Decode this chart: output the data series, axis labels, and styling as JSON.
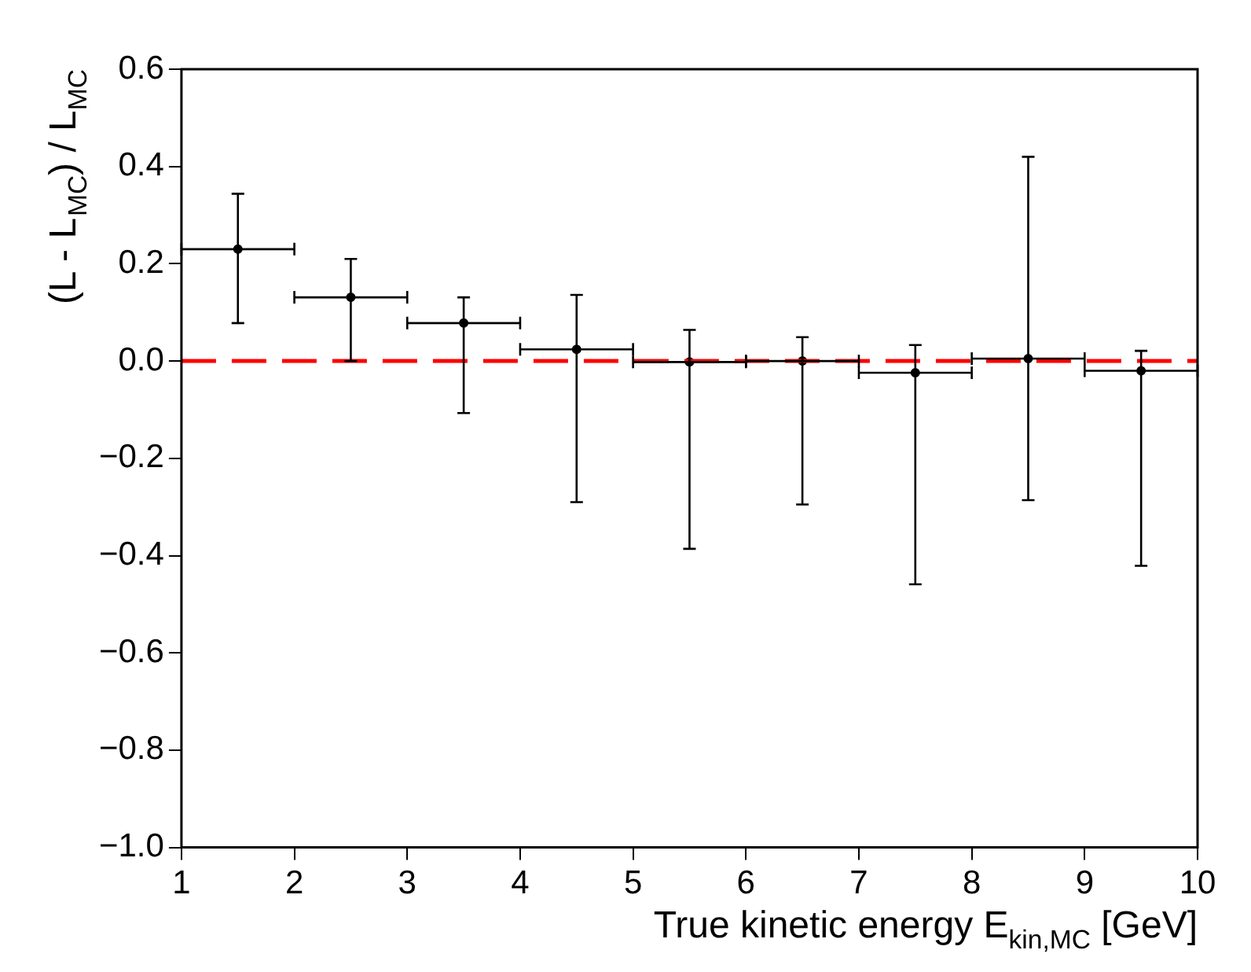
{
  "chart_data": {
    "type": "scatter",
    "xlabel": "True kinetic energy E$_{kin,MC}$ [GeV]",
    "ylabel": "(L - L$_{MC}$) / L$_{MC}$",
    "x": [
      1.5,
      2.5,
      3.5,
      4.5,
      5.5,
      6.5,
      7.5,
      8.5,
      9.5
    ],
    "series": [
      {
        "color": "#000000",
        "values": [
          0.23,
          0.131,
          0.078,
          0.024,
          -0.002,
          0,
          -0.024,
          0.005,
          -0.02
        ],
        "errors": [
          [
            0.078,
            0.344
          ],
          [
            0,
            0.21
          ],
          [
            -0.107,
            0.131
          ],
          [
            -0.29,
            0.136
          ],
          [
            -0.386,
            0.064
          ],
          [
            -0.295,
            0.049
          ],
          [
            -0.459,
            0.033
          ],
          [
            -0.286,
            0.42
          ],
          [
            -0.421,
            0.021
          ]
        ],
        "xerrors": [
          0.5,
          0.5,
          0.5,
          0.5,
          0.5,
          0.5,
          0.5,
          0.5,
          0.5
        ]
      }
    ],
    "xlim": [
      1,
      10
    ],
    "xticks": [
      1,
      2,
      3,
      4,
      5,
      6,
      7,
      8,
      9,
      10
    ],
    "ylim": [
      -1,
      0.6
    ],
    "yticks": [
      {
        "value": -1,
        "label": "−1.0"
      },
      {
        "value": -0.8,
        "label": "−0.8"
      },
      {
        "value": -0.6,
        "label": "−0.6"
      },
      {
        "value": -0.4,
        "label": "−0.4"
      },
      {
        "value": -0.2,
        "label": "−0.2"
      },
      {
        "value": 0,
        "label": "0.0"
      },
      {
        "value": 0.2,
        "label": "0.2"
      },
      {
        "value": 0.4,
        "label": "0.4"
      },
      {
        "value": 0.6,
        "label": "0.6"
      }
    ],
    "ref_lines": [
      {
        "axis": "y",
        "value": 0,
        "color": "#ff0000",
        "line_style": "dashed"
      }
    ],
    "marker": "circle",
    "legend": false,
    "grid": false
  }
}
